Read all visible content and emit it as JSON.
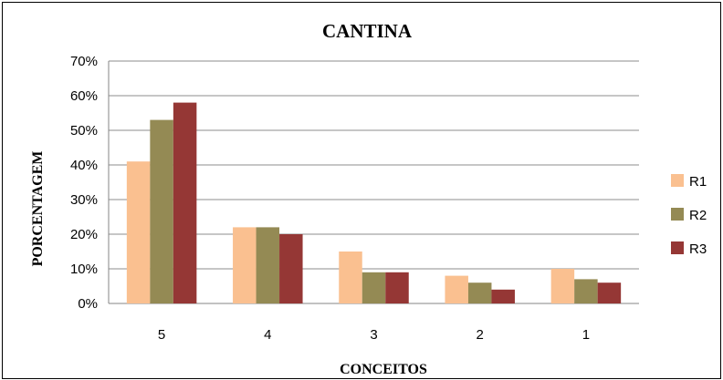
{
  "chart_data": {
    "type": "bar",
    "title": "CANTINA",
    "xlabel": "CONCEITOS",
    "ylabel": "PORCENTAGEM",
    "categories": [
      "5",
      "4",
      "3",
      "2",
      "1"
    ],
    "ylim": [
      0,
      70
    ],
    "y_ticks": [
      "0%",
      "10%",
      "20%",
      "30%",
      "40%",
      "50%",
      "60%",
      "70%"
    ],
    "grid": true,
    "legend_position": "right",
    "series": [
      {
        "name": "R1",
        "color": "#FAC090",
        "values": [
          41,
          22,
          15,
          8,
          10
        ]
      },
      {
        "name": "R2",
        "color": "#948A54",
        "values": [
          53,
          22,
          9,
          6,
          7
        ]
      },
      {
        "name": "R3",
        "color": "#953735",
        "values": [
          58,
          20,
          9,
          4,
          6
        ]
      }
    ]
  }
}
